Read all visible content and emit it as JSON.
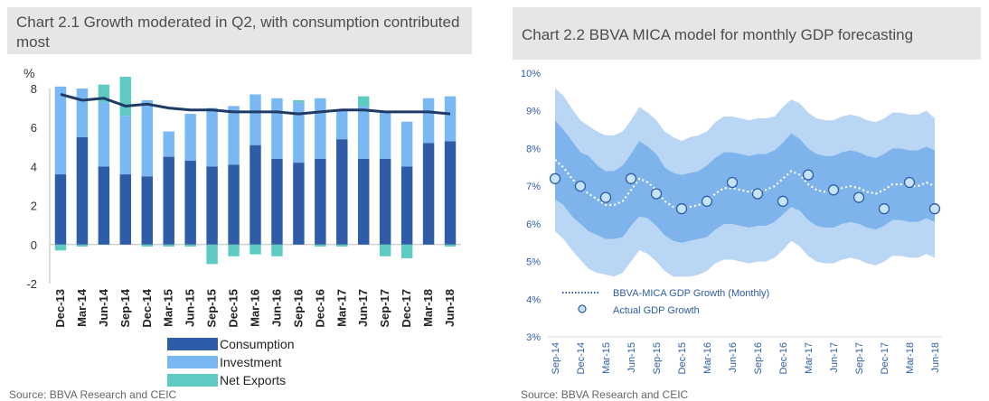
{
  "left": {
    "title": "Chart 2.1 Growth moderated in Q2, with consumption contributed most",
    "source": "Source: BBVA Research and CEIC",
    "chart_data": {
      "type": "bar",
      "stacked": true,
      "ylabel": "%",
      "ylim": [
        -2,
        8
      ],
      "yticks": [
        "-2",
        "0",
        "2",
        "4",
        "6",
        "8"
      ],
      "categories": [
        "Dec-13",
        "Mar-14",
        "Jun-14",
        "Sep-14",
        "Dec-14",
        "Mar-15",
        "Jun-15",
        "Sep-15",
        "Dec-15",
        "Mar-16",
        "Jun-16",
        "Sep-16",
        "Dec-16",
        "Mar-17",
        "Jun-17",
        "Sep-17",
        "Dec-17",
        "Mar-18",
        "Jun-18"
      ],
      "series": [
        {
          "name": "Consumption",
          "color": "#2e5ca8",
          "values": [
            3.6,
            5.5,
            4.0,
            3.6,
            3.5,
            4.5,
            4.3,
            4.0,
            4.1,
            5.1,
            4.4,
            4.2,
            4.4,
            5.4,
            4.4,
            4.4,
            4.0,
            5.2,
            5.3
          ]
        },
        {
          "name": "Investment",
          "color": "#79b8f2",
          "values": [
            4.5,
            2.5,
            3.3,
            3.0,
            3.9,
            1.3,
            2.4,
            3.0,
            3.0,
            2.6,
            3.1,
            3.1,
            3.1,
            1.5,
            2.7,
            2.4,
            2.3,
            2.3,
            2.3
          ]
        },
        {
          "name": "Net Exports",
          "color": "#5ecbc2",
          "values": [
            -0.3,
            -0.1,
            0.9,
            2.0,
            -0.1,
            -0.1,
            -0.1,
            -1.0,
            -0.6,
            -0.5,
            -0.6,
            0.1,
            -0.1,
            -0.1,
            0.5,
            -0.6,
            -0.7,
            0.0,
            -0.1
          ]
        }
      ],
      "line": {
        "name": "GDP growth",
        "color": "#1f3a66",
        "values": [
          7.7,
          7.4,
          7.5,
          7.1,
          7.2,
          7.0,
          6.9,
          6.9,
          6.8,
          6.8,
          6.8,
          6.7,
          6.8,
          6.9,
          6.9,
          6.8,
          6.8,
          6.8,
          6.7
        ]
      },
      "legend": [
        "Consumption",
        "Investment",
        "Net Exports"
      ]
    }
  },
  "right": {
    "title": "Chart 2.2 BBVA MICA model for monthly GDP forecasting",
    "source": "Source: BBVA Research and CEIC",
    "chart_data": {
      "type": "area",
      "ylim": [
        3,
        10
      ],
      "yticks": [
        "3%",
        "4%",
        "5%",
        "6%",
        "7%",
        "8%",
        "9%",
        "10%"
      ],
      "x_labels": [
        "Sep-14",
        "Dec-14",
        "Mar-15",
        "Jun-15",
        "Sep-15",
        "Dec-15",
        "Mar-16",
        "Jun-16",
        "Sep-16",
        "Dec-16",
        "Mar-17",
        "Jun-17",
        "Sep-17",
        "Dec-17",
        "Mar-18",
        "Jun-18"
      ],
      "quarterly_actual": [
        7.2,
        7.0,
        6.7,
        7.2,
        6.8,
        6.4,
        6.6,
        7.1,
        6.8,
        6.6,
        7.3,
        6.9,
        6.7,
        6.4,
        7.1,
        6.4
      ],
      "monthly_x": [
        0,
        0.33,
        0.67,
        1,
        1.33,
        1.67,
        2,
        2.33,
        2.67,
        3,
        3.33,
        3.67,
        4,
        4.33,
        4.67,
        5,
        5.33,
        5.67,
        6,
        6.33,
        6.67,
        7,
        7.33,
        7.67,
        8,
        8.33,
        8.67,
        9,
        9.33,
        9.67,
        10,
        10.33,
        10.67,
        11,
        11.33,
        11.67,
        12,
        12.33,
        12.67,
        13,
        13.33,
        13.67,
        14,
        14.33,
        14.67,
        15
      ],
      "monthly_forecast": [
        7.7,
        7.5,
        7.2,
        6.95,
        6.8,
        6.65,
        6.5,
        6.5,
        6.6,
        6.9,
        7.2,
        7.1,
        6.9,
        6.6,
        6.45,
        6.4,
        6.45,
        6.5,
        6.6,
        6.8,
        6.95,
        6.95,
        6.9,
        6.85,
        6.9,
        6.9,
        7.0,
        7.2,
        7.4,
        7.3,
        7.05,
        6.9,
        6.85,
        6.85,
        6.95,
        7.0,
        6.95,
        6.85,
        6.8,
        6.9,
        7.05,
        7.05,
        7.0,
        7.0,
        7.1,
        7.0
      ],
      "band_inner": {
        "color": "#7fb3eb",
        "upper": [
          8.75,
          8.5,
          8.2,
          7.9,
          7.8,
          7.55,
          7.4,
          7.4,
          7.55,
          7.85,
          8.2,
          8.05,
          7.85,
          7.5,
          7.35,
          7.3,
          7.35,
          7.4,
          7.55,
          7.75,
          7.9,
          7.9,
          7.85,
          7.8,
          7.85,
          7.85,
          7.95,
          8.15,
          8.4,
          8.25,
          8.0,
          7.85,
          7.8,
          7.8,
          7.9,
          7.95,
          7.9,
          7.8,
          7.75,
          7.85,
          8.0,
          8.0,
          7.95,
          7.95,
          8.05,
          7.95
        ],
        "lower": [
          6.65,
          6.5,
          6.2,
          6.0,
          5.8,
          5.7,
          5.6,
          5.6,
          5.65,
          5.95,
          6.2,
          6.15,
          5.95,
          5.7,
          5.55,
          5.5,
          5.55,
          5.6,
          5.65,
          5.85,
          6.0,
          6.0,
          5.95,
          5.9,
          5.95,
          5.95,
          6.05,
          6.25,
          6.45,
          6.35,
          6.1,
          5.95,
          5.9,
          5.9,
          6.0,
          6.05,
          6.0,
          5.9,
          5.85,
          5.95,
          6.1,
          6.1,
          6.05,
          6.05,
          6.15,
          6.05
        ]
      },
      "band_outer": {
        "color": "#b9d6f5",
        "upper": [
          9.6,
          9.4,
          9.05,
          8.75,
          8.6,
          8.45,
          8.35,
          8.35,
          8.45,
          8.75,
          9.1,
          8.95,
          8.75,
          8.45,
          8.3,
          8.2,
          8.3,
          8.35,
          8.45,
          8.7,
          8.85,
          8.85,
          8.8,
          8.75,
          8.8,
          8.8,
          8.85,
          9.1,
          9.3,
          9.2,
          8.95,
          8.8,
          8.75,
          8.75,
          8.85,
          8.9,
          8.85,
          8.75,
          8.7,
          8.8,
          8.95,
          8.95,
          8.9,
          8.9,
          9.0,
          8.8
        ],
        "lower": [
          5.8,
          5.6,
          5.3,
          5.05,
          4.8,
          4.7,
          4.65,
          4.6,
          4.7,
          5.0,
          5.3,
          5.2,
          5.0,
          4.75,
          4.6,
          4.6,
          4.6,
          4.65,
          4.75,
          4.95,
          5.05,
          5.05,
          5.0,
          4.95,
          5.0,
          5.0,
          5.1,
          5.3,
          5.55,
          5.4,
          5.15,
          5.0,
          4.95,
          4.95,
          5.05,
          5.1,
          5.05,
          4.95,
          4.9,
          5.0,
          5.15,
          5.15,
          5.1,
          5.1,
          5.2,
          5.1
        ]
      },
      "legend": [
        "BBVA-MICA GDP Growth (Monthly)",
        "Actual GDP Growth"
      ]
    }
  }
}
